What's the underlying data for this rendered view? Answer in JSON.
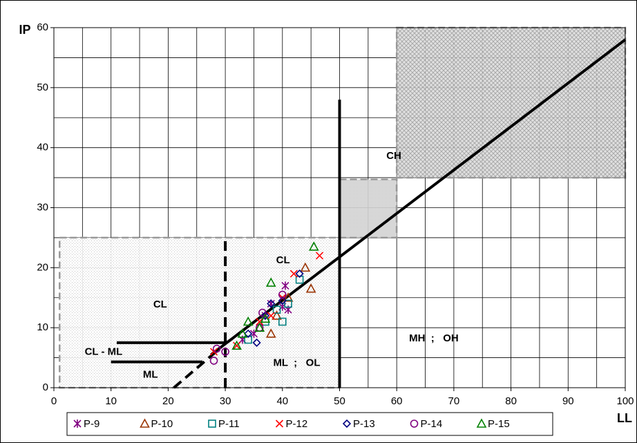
{
  "chart_data": {
    "type": "scatter",
    "y_label": "IP",
    "x_label": "LL",
    "xlim": [
      0,
      100
    ],
    "ylim": [
      0,
      60
    ],
    "xticks": [
      0,
      10,
      20,
      30,
      40,
      50,
      60,
      70,
      80,
      90,
      100
    ],
    "yticks": [
      0,
      10,
      20,
      30,
      40,
      50,
      60
    ],
    "grid": true,
    "minor_grid": true,
    "legend": "bottom",
    "regions": [
      {
        "x": [
          1,
          50
        ],
        "y": [
          0,
          25
        ],
        "style": "sparse-dots"
      },
      {
        "x": [
          50,
          60
        ],
        "y": [
          25,
          34.7
        ],
        "style": "dense-dots"
      },
      {
        "x": [
          60,
          100
        ],
        "y": [
          35,
          60
        ],
        "style": "crosshatch"
      }
    ],
    "reference_lines": [
      {
        "points": [
          [
            27.5,
            5.5
          ],
          [
            100,
            58
          ]
        ],
        "dashed": false
      },
      {
        "points": [
          [
            21,
            0
          ],
          [
            29,
            6.5
          ]
        ],
        "dashed": true
      },
      {
        "points": [
          [
            11,
            7.5
          ],
          [
            30,
            7.5
          ]
        ],
        "dashed": false
      },
      {
        "points": [
          [
            10,
            4.3
          ],
          [
            26,
            4.3
          ]
        ],
        "dashed": false
      },
      {
        "points": [
          [
            50,
            0
          ],
          [
            50,
            48
          ]
        ],
        "dashed": false
      },
      {
        "points": [
          [
            30,
            0
          ],
          [
            30,
            25
          ]
        ],
        "dashed": true
      }
    ],
    "annotations": [
      {
        "text": "CH",
        "x": 59.5,
        "y": 38.6
      },
      {
        "text": "CL",
        "x": 40.1,
        "y": 21.2
      },
      {
        "text": "CL",
        "x": 18.6,
        "y": 13.8
      },
      {
        "text": "CL - ML",
        "x": 8.7,
        "y": 5.9
      },
      {
        "text": "ML",
        "x": 16.9,
        "y": 2.1
      },
      {
        "text": "ML  ;   OL",
        "x": 42.5,
        "y": 4.1
      },
      {
        "text": "MH  ;   OH",
        "x": 66.5,
        "y": 8.2
      }
    ],
    "series": [
      {
        "name": "P-9",
        "color": "#800080",
        "marker": "asterisk",
        "x": [
          40.5,
          40,
          41,
          38,
          37,
          33,
          35
        ],
        "values": [
          17,
          13.5,
          13,
          14,
          12,
          8,
          9
        ]
      },
      {
        "name": "P-10",
        "color": "#993300",
        "marker": "triangle",
        "x": [
          44,
          45,
          38,
          36,
          39,
          41
        ],
        "values": [
          20,
          16.5,
          9,
          10,
          12,
          15
        ]
      },
      {
        "name": "P-11",
        "color": "#008080",
        "marker": "square",
        "x": [
          43,
          40,
          41,
          39,
          37,
          34
        ],
        "values": [
          18,
          11,
          14,
          13,
          11,
          8
        ]
      },
      {
        "name": "P-12",
        "color": "#ff0000",
        "marker": "x",
        "x": [
          46.5,
          42,
          36,
          38,
          28,
          32,
          40
        ],
        "values": [
          22,
          19,
          11,
          12,
          6,
          7,
          15
        ]
      },
      {
        "name": "P-13",
        "color": "#000080",
        "marker": "diamond",
        "x": [
          43,
          35.5,
          38,
          40,
          37,
          34
        ],
        "values": [
          19,
          7.5,
          14,
          14.5,
          12,
          9
        ]
      },
      {
        "name": "P-14",
        "color": "#800080",
        "marker": "circle",
        "x": [
          28,
          28.5,
          30,
          36,
          36.5,
          40
        ],
        "values": [
          4.5,
          6.5,
          6,
          10,
          12.5,
          15.5
        ]
      },
      {
        "name": "P-15",
        "color": "#008000",
        "marker": "triangle",
        "x": [
          45.5,
          38,
          32,
          34,
          36,
          37,
          33
        ],
        "values": [
          23.5,
          17.5,
          7,
          11,
          10,
          11.5,
          9
        ]
      }
    ]
  }
}
